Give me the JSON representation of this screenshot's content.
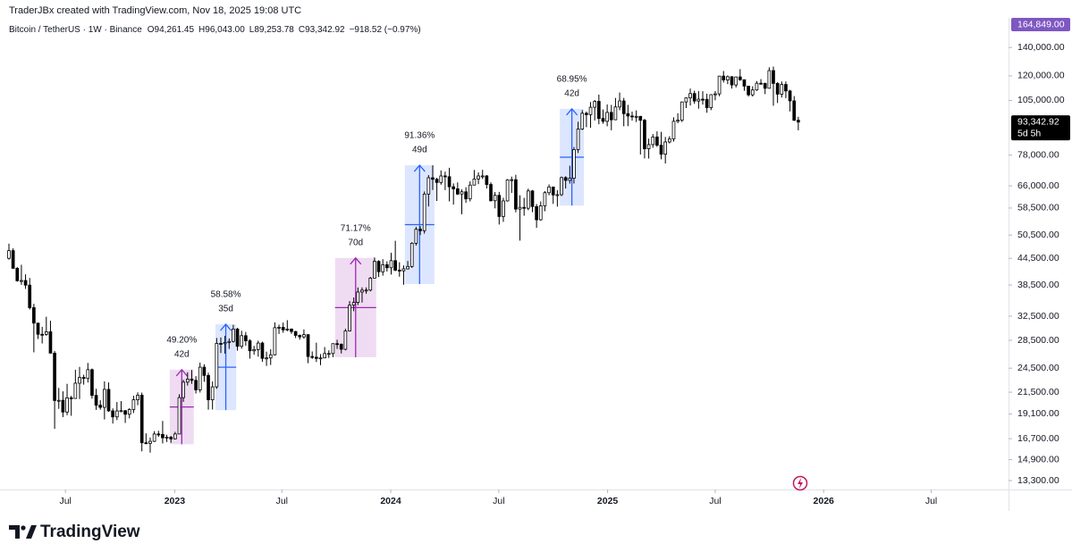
{
  "header": {
    "credit": "TraderJBx created with TradingView.com, Nov 18, 2025 19:08 UTC",
    "symbol": "Bitcoin / TetherUS · 1W · Binance",
    "ohlc": [
      {
        "prefix": "O",
        "text": "94,261.45"
      },
      {
        "prefix": "H",
        "text": "96,043.00"
      },
      {
        "prefix": "L",
        "text": "89,253.78"
      },
      {
        "prefix": "C",
        "text": "93,342.92"
      }
    ],
    "change": "−918.52 (−0.97%)"
  },
  "chart_data": {
    "type": "candlestick",
    "log_scale": true,
    "grid": false,
    "up_color": "#ffffff",
    "down_color": "#000000",
    "border_color": "#000000",
    "open": [
      44500,
      46400,
      42150,
      39400,
      39450,
      38470,
      34040,
      31300,
      29450,
      29440,
      29860,
      26580,
      20550,
      20570,
      19300,
      20850,
      20780,
      22580,
      23300,
      23170,
      24300,
      21130,
      20030,
      19800,
      21830,
      19420,
      18800,
      19420,
      19440,
      19070,
      19570,
      20630,
      21150,
      16330,
      16280,
      16460,
      17130,
      17090,
      16780,
      16840,
      16680,
      17130,
      20880,
      22710,
      23080,
      22930,
      21770,
      24630,
      23550,
      20630,
      22130,
      28030,
      27990,
      28170,
      28330,
      30300,
      27590,
      29230,
      28430,
      26920,
      27100,
      28080,
      25840,
      25900,
      26340,
      30530,
      30590,
      30170,
      30300,
      29900,
      29280,
      29040,
      29400,
      26100,
      26000,
      25830,
      25900,
      26530,
      26530,
      27990,
      27910,
      27150,
      29990,
      34500,
      35030,
      37060,
      37440,
      37450,
      39970,
      43790,
      41370,
      42990,
      42280,
      43950,
      41730,
      41580,
      42030,
      42580,
      48300,
      52130,
      51730,
      63110,
      68960,
      68390,
      67210,
      69650,
      69360,
      65660,
      64940,
      63120,
      63890,
      61480,
      66270,
      68510,
      69650,
      69650,
      66490,
      60860,
      62680,
      55860,
      60800,
      68160,
      68250,
      58160,
      58710,
      58430,
      64200,
      58970,
      54880,
      59190,
      63580,
      65600,
      62820,
      62900,
      69030,
      68000,
      68780,
      80370,
      89850,
      97900,
      97190,
      101170,
      104460,
      95190,
      93720,
      98360,
      94520,
      101330,
      104710,
      97700,
      96460,
      96120,
      96270,
      94270,
      80730,
      82580,
      86080,
      82330,
      78380,
      83760,
      85170,
      93750,
      94280,
      104120,
      106450,
      109000,
      104640,
      105700,
      105600,
      100960,
      108350,
      108800,
      119840,
      117380,
      119450,
      114200,
      119300,
      117490,
      113490,
      108250,
      111140,
      115270,
      115230,
      112160,
      123480,
      115170,
      108640,
      114500,
      110540,
      104720,
      94261.45
    ],
    "high": [
      48200,
      47000,
      42450,
      42980,
      40800,
      40000,
      34750,
      31330,
      30670,
      32400,
      31700,
      26900,
      22000,
      21600,
      22500,
      21080,
      24280,
      24670,
      23650,
      25210,
      24450,
      21900,
      20580,
      22800,
      22670,
      19690,
      20380,
      20480,
      19520,
      19710,
      21090,
      21480,
      21450,
      17190,
      16800,
      17400,
      17430,
      18390,
      17060,
      16940,
      17330,
      21260,
      23000,
      23960,
      24260,
      23460,
      25250,
      25020,
      23900,
      22790,
      28870,
      28950,
      29200,
      28800,
      31000,
      30500,
      30030,
      29820,
      28670,
      27660,
      28450,
      28300,
      26800,
      27150,
      31430,
      31040,
      31380,
      31800,
      30400,
      29990,
      29420,
      30250,
      29450,
      26830,
      28140,
      26440,
      27480,
      27000,
      28030,
      28590,
      28000,
      30350,
      35280,
      35980,
      37980,
      38000,
      38000,
      40250,
      44700,
      44040,
      44300,
      43800,
      45880,
      48970,
      43580,
      42840,
      43880,
      48590,
      52820,
      52980,
      64000,
      69990,
      73780,
      68950,
      71770,
      71300,
      72800,
      66870,
      67230,
      64730,
      65500,
      67700,
      71950,
      71000,
      71990,
      70000,
      67300,
      63800,
      63860,
      61860,
      68450,
      69400,
      70080,
      62700,
      61830,
      65000,
      64510,
      59800,
      60650,
      64130,
      66500,
      65620,
      64480,
      69400,
      69520,
      73620,
      81500,
      93480,
      99590,
      98870,
      104090,
      105250,
      108350,
      99960,
      102730,
      102480,
      106420,
      109590,
      106460,
      102500,
      98830,
      99480,
      96500,
      95000,
      85300,
      87450,
      88750,
      88500,
      86100,
      86430,
      95760,
      97900,
      104350,
      106660,
      111980,
      110720,
      110530,
      110400,
      108950,
      108530,
      110530,
      120000,
      123220,
      120250,
      119800,
      119450,
      124470,
      117540,
      113660,
      113380,
      116660,
      117900,
      115500,
      125700,
      126200,
      115970,
      116400,
      116400,
      111190,
      107500,
      96043
    ],
    "low": [
      44200,
      42100,
      39200,
      38540,
      37700,
      33700,
      26700,
      28700,
      28020,
      29220,
      26560,
      17620,
      19640,
      18780,
      18970,
      18910,
      20760,
      20710,
      22400,
      22660,
      20760,
      19520,
      19550,
      18540,
      19330,
      18130,
      18470,
      19290,
      18190,
      18650,
      19200,
      20030,
      15590,
      16210,
      15480,
      16400,
      16860,
      16270,
      16400,
      16330,
      16630,
      17120,
      20400,
      22290,
      22500,
      21350,
      21460,
      22750,
      19550,
      19570,
      21900,
      26600,
      26510,
      27200,
      28170,
      26940,
      27240,
      27670,
      25810,
      26350,
      26080,
      25350,
      24800,
      24930,
      26250,
      29500,
      29700,
      29950,
      29520,
      28860,
      28600,
      28750,
      25170,
      25770,
      25330,
      24900,
      25860,
      25900,
      26010,
      27200,
      26530,
      26990,
      29880,
      33390,
      34520,
      35000,
      36700,
      37180,
      39970,
      40220,
      40500,
      41420,
      40750,
      41500,
      40280,
      38550,
      41880,
      42260,
      47710,
      50520,
      50900,
      59000,
      64530,
      60780,
      66400,
      64500,
      60660,
      59600,
      62790,
      56550,
      60190,
      60630,
      66300,
      66600,
      68500,
      65060,
      60600,
      58400,
      53480,
      54260,
      60600,
      63500,
      57150,
      49000,
      56100,
      57800,
      57200,
      52550,
      54630,
      57490,
      62700,
      59830,
      58950,
      62440,
      65050,
      66800,
      66830,
      78900,
      89380,
      90790,
      90500,
      94150,
      92230,
      92500,
      91220,
      89260,
      94300,
      99550,
      91230,
      91280,
      94090,
      93340,
      78260,
      76600,
      76560,
      81180,
      81560,
      76240,
      74510,
      83100,
      83950,
      92800,
      93380,
      100720,
      102110,
      103070,
      100370,
      102660,
      98200,
      99590,
      105100,
      107400,
      115700,
      114720,
      112000,
      112650,
      116800,
      110680,
      107250,
      107270,
      110620,
      114380,
      108650,
      111990,
      102000,
      103530,
      106650,
      106300,
      98900,
      93900,
      89253.78
    ],
    "close": [
      46400,
      42150,
      39400,
      39450,
      38470,
      34040,
      31300,
      29450,
      29440,
      29860,
      26580,
      20550,
      20570,
      19300,
      20850,
      20780,
      22580,
      23300,
      23170,
      24300,
      21130,
      20030,
      19800,
      21830,
      19420,
      18800,
      19420,
      19440,
      19070,
      19570,
      20630,
      21150,
      16330,
      16280,
      16460,
      17130,
      17090,
      16780,
      16840,
      16680,
      17130,
      20880,
      22710,
      23080,
      22930,
      21770,
      24630,
      23550,
      20630,
      22130,
      28030,
      27990,
      28170,
      28330,
      30300,
      27590,
      29230,
      28430,
      26920,
      27100,
      28080,
      25840,
      25900,
      26340,
      30530,
      30590,
      30170,
      30300,
      29900,
      29280,
      29040,
      29400,
      26100,
      26000,
      25830,
      25900,
      26530,
      26530,
      27990,
      27910,
      27150,
      29990,
      34500,
      35030,
      37060,
      37440,
      37450,
      39970,
      43790,
      41370,
      42990,
      42280,
      43950,
      41730,
      41580,
      42030,
      42580,
      48300,
      52130,
      51730,
      63110,
      68960,
      68390,
      67210,
      69650,
      69360,
      65660,
      64940,
      63120,
      63890,
      61480,
      66270,
      68510,
      69650,
      69650,
      66490,
      60860,
      62680,
      55860,
      60800,
      68160,
      68250,
      58160,
      58710,
      58430,
      64200,
      58970,
      54880,
      59190,
      63580,
      65600,
      62820,
      62900,
      69030,
      68000,
      68780,
      80370,
      89850,
      97900,
      97190,
      101170,
      104460,
      95190,
      93720,
      98360,
      94520,
      101330,
      104710,
      97700,
      96460,
      96120,
      96270,
      94270,
      80730,
      82580,
      86080,
      82330,
      78380,
      83760,
      85170,
      93750,
      94280,
      104120,
      106450,
      109000,
      104640,
      105700,
      105600,
      100960,
      108350,
      108800,
      119840,
      117380,
      119450,
      114200,
      119300,
      117490,
      113490,
      108250,
      111140,
      115270,
      115230,
      112160,
      123480,
      115170,
      108640,
      114500,
      110540,
      104720,
      94261.45,
      93342.92
    ],
    "xlim": [
      -2.15,
      240.6
    ],
    "xticks": [
      {
        "value": 13.6,
        "label": "Jul"
      },
      {
        "value": 39.9,
        "label": "2023"
      },
      {
        "value": 65.7,
        "label": "Jul"
      },
      {
        "value": 91.9,
        "label": "2024"
      },
      {
        "value": 117.9,
        "label": "Jul"
      },
      {
        "value": 144.1,
        "label": "2025"
      },
      {
        "value": 170,
        "label": "Jul"
      },
      {
        "value": 196.1,
        "label": "2026"
      },
      {
        "value": 222,
        "label": "Jul"
      }
    ],
    "ylim": [
      12856,
      147800
    ],
    "yticks": [
      {
        "value": 140000,
        "label": "140,000.00"
      },
      {
        "value": 120000,
        "label": "120,000.00"
      },
      {
        "value": 105000,
        "label": "105,000.00"
      },
      {
        "value": 78000,
        "label": "78,000.00"
      },
      {
        "value": 66000,
        "label": "66,000.00"
      },
      {
        "value": 58500,
        "label": "58,500.00"
      },
      {
        "value": 50500,
        "label": "50,500.00"
      },
      {
        "value": 44500,
        "label": "44,500.00"
      },
      {
        "value": 38500,
        "label": "38,500.00"
      },
      {
        "value": 32500,
        "label": "32,500.00"
      },
      {
        "value": 28500,
        "label": "28,500.00"
      },
      {
        "value": 24500,
        "label": "24,500.00"
      },
      {
        "value": 21500,
        "label": "21,500.00"
      },
      {
        "value": 19100,
        "label": "19,100.00"
      },
      {
        "value": 16700,
        "label": "16,700.00"
      },
      {
        "value": 14900,
        "label": "14,900.00"
      },
      {
        "value": 13300,
        "label": "13,300.00"
      }
    ],
    "annotations": [
      {
        "label": "49.20%",
        "duration": "42d",
        "x0": 38.7,
        "x1": 44.5,
        "low": 16200,
        "high": 24300,
        "color": "#9c27b0",
        "fill": "rgba(156,39,176,0.16)"
      },
      {
        "label": "58.58%",
        "duration": "35d",
        "x0": 49.7,
        "x1": 54.7,
        "low": 19500,
        "high": 31100,
        "color": "#2962ff",
        "fill": "rgba(41,98,255,0.16)"
      },
      {
        "label": "71.17%",
        "duration": "70d",
        "x0": 78.5,
        "x1": 88.4,
        "low": 26000,
        "high": 44600,
        "color": "#9c27b0",
        "fill": "rgba(156,39,176,0.16)"
      },
      {
        "label": "91.36%",
        "duration": "49d",
        "x0": 95.3,
        "x1": 102.4,
        "low": 38700,
        "high": 73800,
        "color": "#2962ff",
        "fill": "rgba(41,98,255,0.16)"
      },
      {
        "label": "68.95%",
        "duration": "42d",
        "x0": 132.6,
        "x1": 138.4,
        "low": 59300,
        "high": 100300,
        "color": "#2962ff",
        "fill": "rgba(41,98,255,0.16)"
      }
    ],
    "price_labels": [
      {
        "value": 164849,
        "label": "164,849.00",
        "color": "#7e57c2"
      },
      {
        "value": 93342.92,
        "label": "93,342.92",
        "sublabel": "5d 5h",
        "color": "#000000"
      }
    ]
  },
  "footer": {
    "brand": "TradingView"
  }
}
